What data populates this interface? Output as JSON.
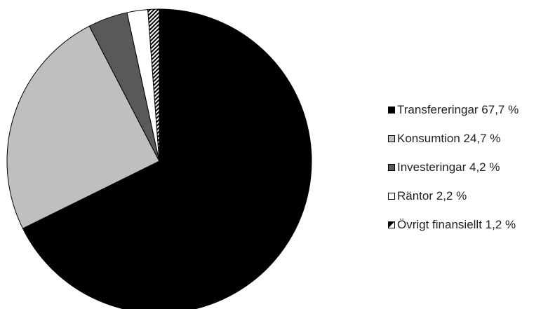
{
  "chart_data": {
    "type": "pie",
    "start": "12 o'clock",
    "direction": "clockwise",
    "legend_position": "right",
    "slices": [
      {
        "label": "Transfereringar 67,7 %",
        "value": 67.7,
        "color": "#000000",
        "pattern": "solid"
      },
      {
        "label": "Konsumtion 24,7 %",
        "value": 24.7,
        "color": "#bfbfbf",
        "pattern": "solid"
      },
      {
        "label": "Investeringar 4,2 %",
        "value": 4.2,
        "color": "#595959",
        "pattern": "solid"
      },
      {
        "label": "Räntor 2,2 %",
        "value": 2.2,
        "color": "#ffffff",
        "pattern": "solid"
      },
      {
        "label": "Övrigt finansiellt 1,2 %",
        "value": 1.2,
        "color": "#000000",
        "pattern": "diagonal-stripes"
      }
    ]
  }
}
